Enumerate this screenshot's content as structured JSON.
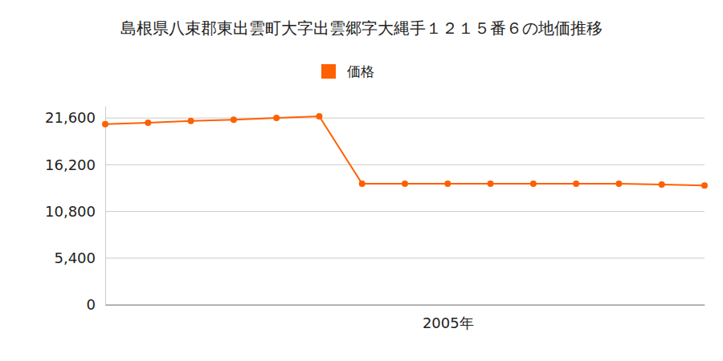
{
  "chart_data": {
    "type": "line",
    "title": "島根県八束郡東出雲町大字出雲郷字大縄手１２１５番６の地価推移",
    "categories": [
      null,
      null,
      null,
      null,
      null,
      null,
      null,
      null,
      "2005年",
      null,
      null,
      null,
      null,
      null,
      null
    ],
    "series": [
      {
        "name": "価格",
        "color": "#ff6000",
        "marker": "circle",
        "values": [
          20900,
          21050,
          21250,
          21400,
          21600,
          21800,
          14000,
          14000,
          14000,
          14000,
          14000,
          14000,
          14000,
          13900,
          13800
        ]
      }
    ],
    "ylim": [
      0,
      23000
    ],
    "yticks": [
      0,
      {
        "value": 5400,
        "label": "5,400"
      },
      {
        "value": 10800,
        "label": "10,800"
      },
      {
        "value": 16200,
        "label": "16,200"
      },
      {
        "value": 21600,
        "label": "21,600"
      }
    ],
    "grid": true,
    "legend": "top"
  }
}
